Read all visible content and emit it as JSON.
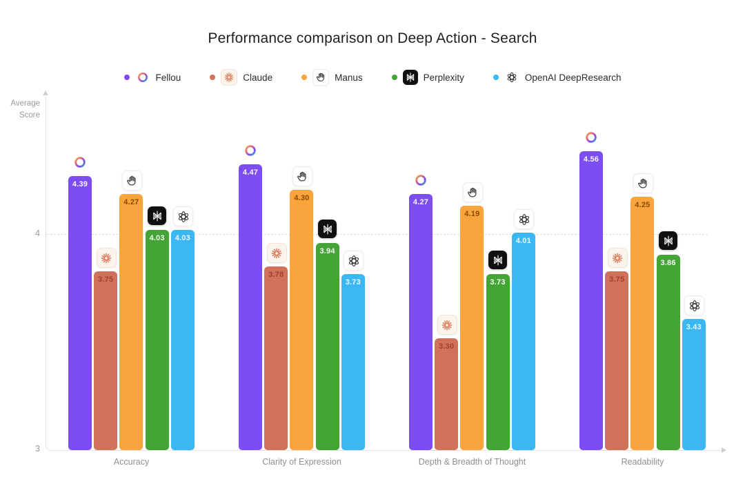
{
  "title": "Performance comparison on Deep Action - Search",
  "axes": {
    "y_title_line1": "Average",
    "y_title_line2": "Score",
    "tick_upper": "4",
    "tick_lower": "3"
  },
  "chart_data": {
    "type": "bar",
    "title": "Performance comparison on Deep Action - Search",
    "xlabel": "",
    "ylabel": "Average Score",
    "categories": [
      "Accuracy",
      "Clarity of Expression",
      "Depth & Breadth of Thought",
      "Readability"
    ],
    "series": [
      {
        "name": "Fellou",
        "icon": "fellou-ring-icon",
        "color": "#7C4DF0",
        "value_label_color": "rgba(255,255,255,0.95)",
        "values": [
          4.39,
          4.47,
          4.27,
          4.56
        ]
      },
      {
        "name": "Claude",
        "icon": "claude-starburst-icon",
        "color": "#D0715A",
        "value_label_color": "#A63D2F",
        "values": [
          3.75,
          3.78,
          3.3,
          3.75
        ]
      },
      {
        "name": "Manus",
        "icon": "manus-hand-icon",
        "color": "#F9A43D",
        "value_label_color": "#8A4A00",
        "values": [
          4.27,
          4.3,
          4.19,
          4.25
        ]
      },
      {
        "name": "Perplexity",
        "icon": "perplexity-logo-icon",
        "color": "#45A436",
        "value_label_color": "rgba(255,255,255,0.95)",
        "values": [
          4.03,
          3.94,
          3.73,
          3.86
        ]
      },
      {
        "name": "OpenAI DeepResearch",
        "icon": "openai-logo-icon",
        "color": "#3BB8F3",
        "value_label_color": "rgba(255,255,255,0.88)",
        "values": [
          4.03,
          3.73,
          4.01,
          3.43
        ]
      }
    ],
    "yticks_shown": [
      "4",
      "3"
    ],
    "gridline_value": 4,
    "baseline_value": 3,
    "grid": "single horizontal dashed gridline at y=4",
    "legend_position": "top"
  }
}
